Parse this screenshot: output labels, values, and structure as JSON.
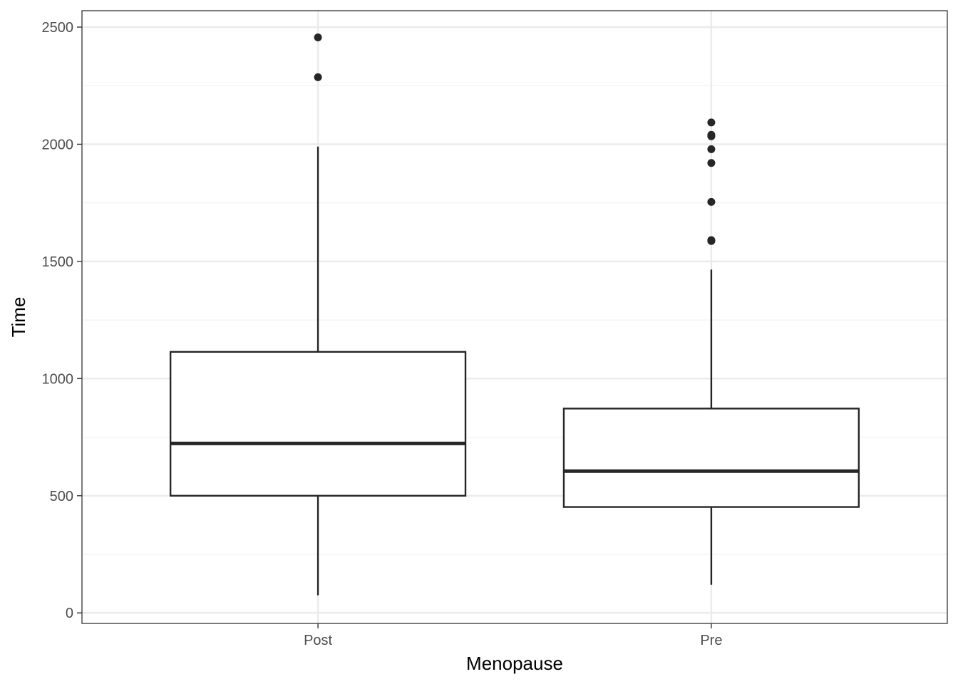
{
  "chart_data": {
    "type": "boxplot",
    "title": "",
    "xlabel": "Menopause",
    "ylabel": "Time",
    "ylim": [
      -45,
      2570
    ],
    "y_major_ticks": [
      0,
      500,
      1000,
      1500,
      2000,
      2500
    ],
    "y_minor_ticks": [
      250,
      750,
      1250,
      1750,
      2250
    ],
    "y_tick_labels": [
      "0",
      "500",
      "1000",
      "1500",
      "2000",
      "2500"
    ],
    "grid": true,
    "categories": [
      "Post",
      "Pre"
    ],
    "boxes": [
      {
        "category": "Post",
        "whisker_low": 75,
        "q1": 500,
        "median": 723,
        "q3": 1114,
        "whisker_high": 1990,
        "outliers": [
          2456,
          2286
        ]
      },
      {
        "category": "Pre",
        "whisker_low": 120,
        "q1": 452,
        "median": 605,
        "q3": 872,
        "whisker_high": 1465,
        "outliers": [
          2093,
          2040,
          2034,
          1979,
          1920,
          1754,
          1591,
          1587
        ]
      }
    ],
    "colors": {
      "box_stroke": "#262626",
      "grid_major": "#ebebeb",
      "grid_minor": "#f2f2f2",
      "panel_border": "#333333",
      "tick_text": "#4d4d4d"
    }
  }
}
